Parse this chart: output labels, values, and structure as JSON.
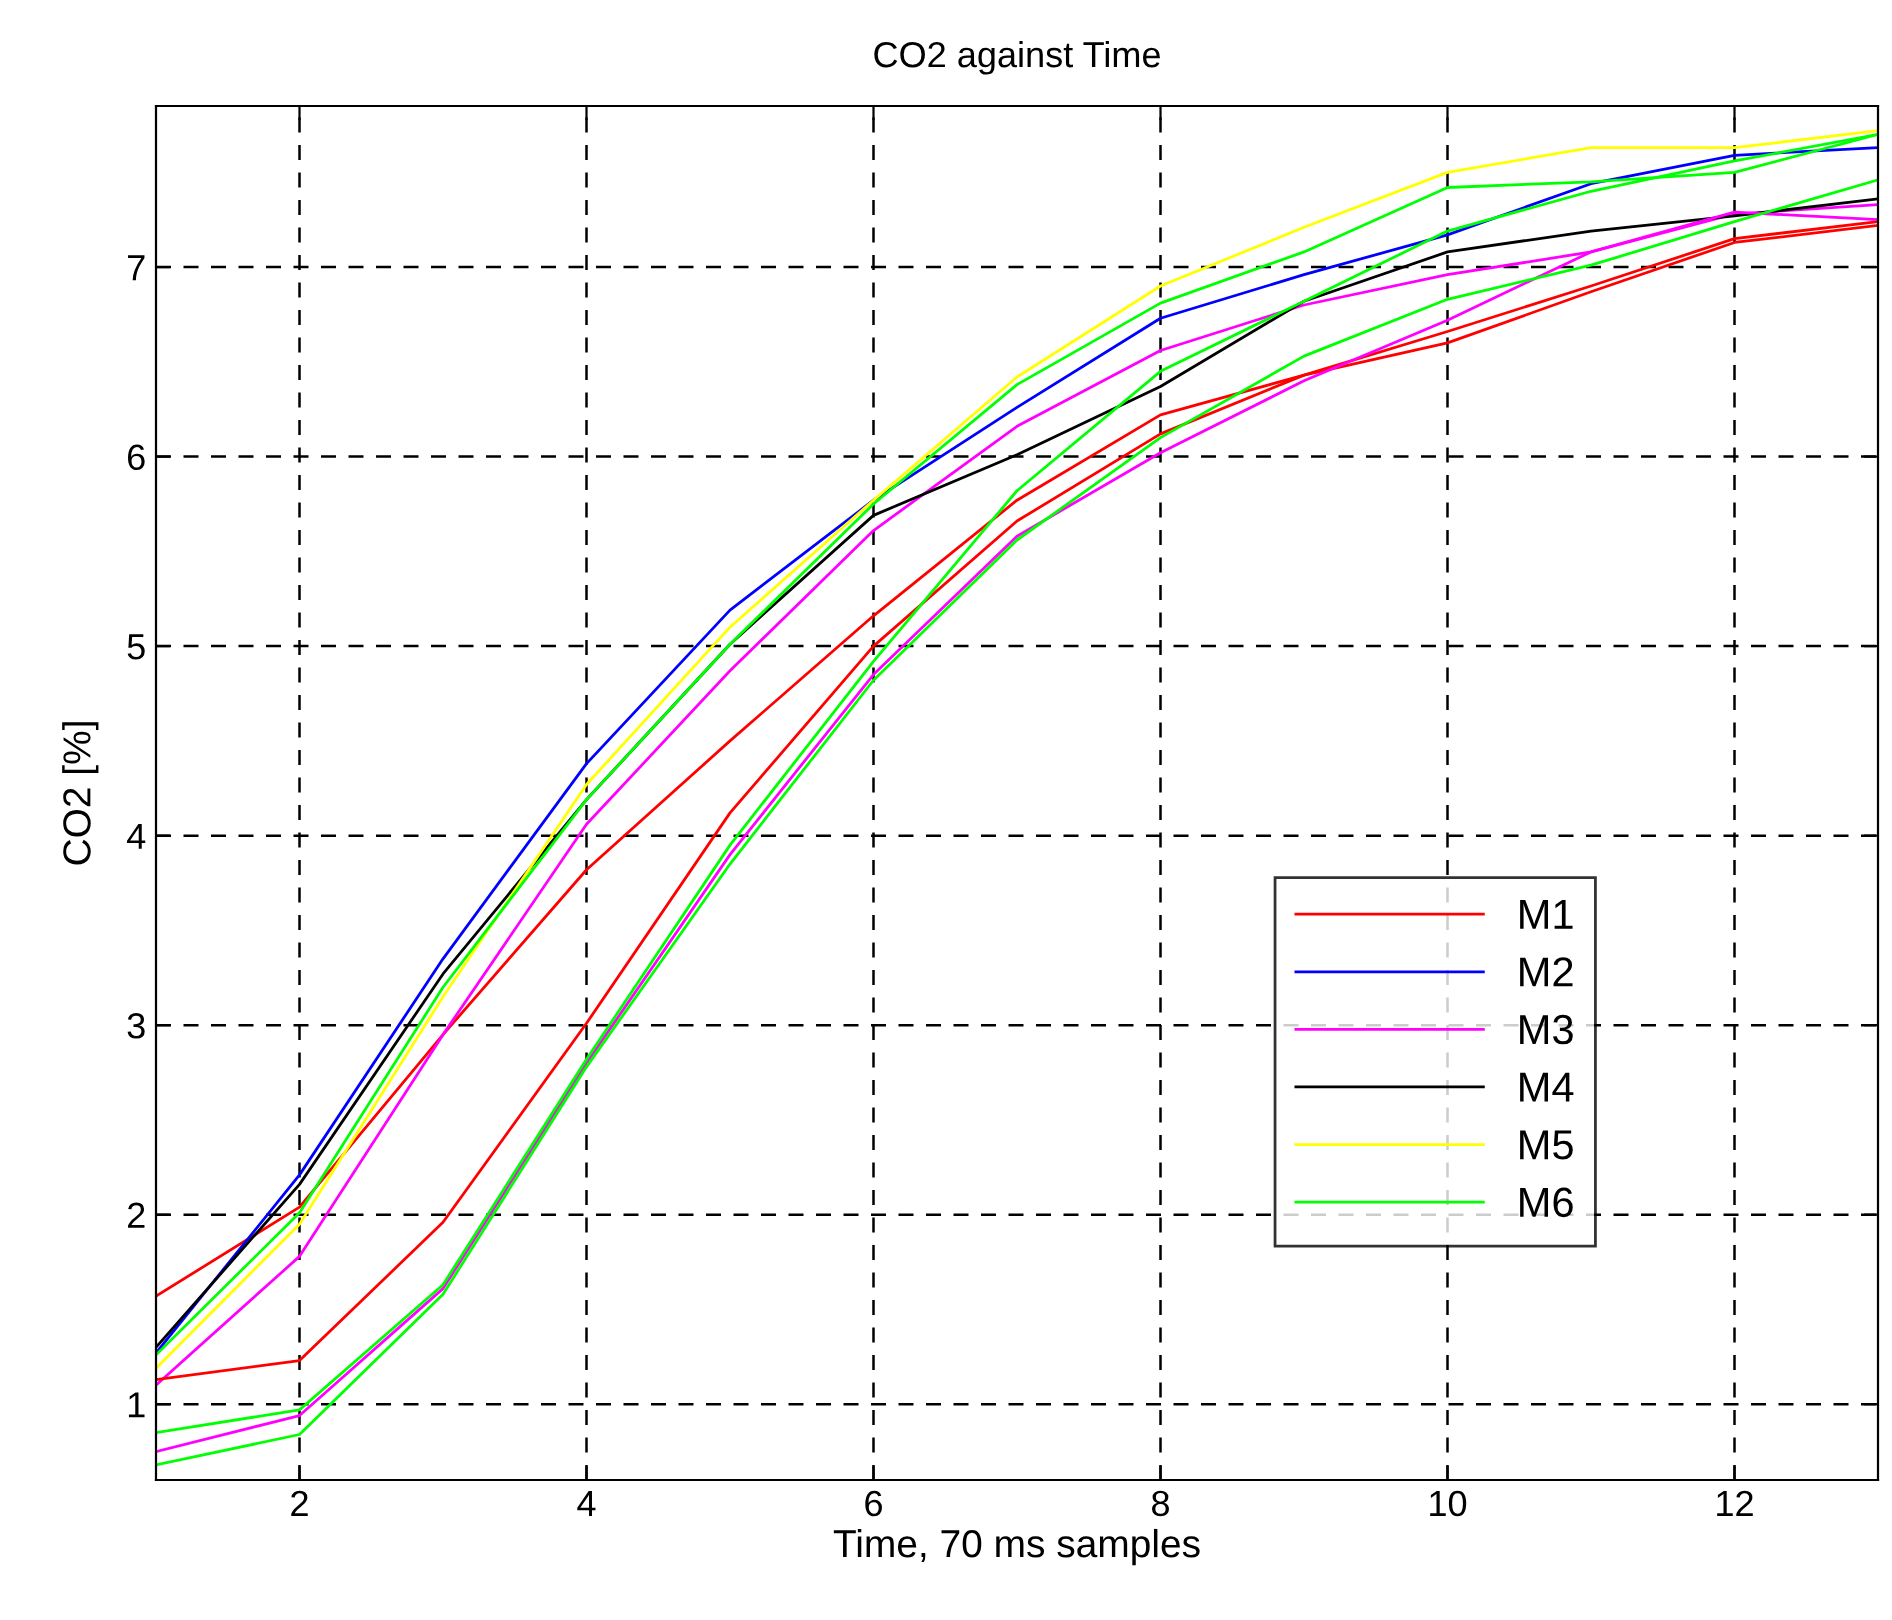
{
  "chart_data": {
    "type": "line",
    "title": "CO2 against Time",
    "xlabel": "Time, 70 ms samples",
    "ylabel": "CO2 [%]",
    "x": [
      1,
      2,
      3,
      4,
      5,
      6,
      7,
      8,
      9,
      10,
      11,
      12,
      13
    ],
    "series": [
      {
        "name": "M1",
        "color": "#ff0000",
        "values": [
          1.57,
          2.04,
          2.95,
          3.82,
          4.5,
          5.16,
          5.77,
          6.22,
          6.43,
          6.66,
          6.9,
          7.15,
          7.24
        ]
      },
      {
        "name": "M2",
        "color": "#0000ff",
        "values": [
          1.27,
          2.21,
          3.35,
          4.38,
          5.19,
          5.77,
          6.26,
          6.73,
          6.96,
          7.17,
          7.44,
          7.59,
          7.63
        ]
      },
      {
        "name": "M3",
        "color": "#ff00ff",
        "values": [
          1.1,
          1.78,
          2.95,
          4.06,
          4.87,
          5.61,
          6.16,
          6.56,
          6.8,
          6.96,
          7.08,
          7.28,
          7.33
        ]
      },
      {
        "name": "M4",
        "color": "#000000",
        "values": [
          1.3,
          2.16,
          3.27,
          4.19,
          5.01,
          5.69,
          6.01,
          6.37,
          6.82,
          7.08,
          7.19,
          7.27,
          7.36
        ]
      },
      {
        "name": "M5",
        "color": "#ffff00",
        "values": [
          1.19,
          1.95,
          3.15,
          4.27,
          5.1,
          5.77,
          6.42,
          6.9,
          7.21,
          7.5,
          7.63,
          7.63,
          7.72
        ]
      },
      {
        "name": "M6",
        "color": "#00ff00",
        "values": [
          1.26,
          2.01,
          3.2,
          4.19,
          5.01,
          5.75,
          6.38,
          6.81,
          7.08,
          7.42,
          7.45,
          7.5,
          7.7
        ]
      },
      {
        "color": "#ff0000",
        "values": [
          1.13,
          1.23,
          1.96,
          3.01,
          4.12,
          5.0,
          5.66,
          6.12,
          6.43,
          6.6,
          6.87,
          7.13,
          7.22
        ]
      },
      {
        "color": "#ff00ff",
        "values": [
          0.75,
          0.94,
          1.61,
          2.8,
          3.9,
          4.85,
          5.58,
          6.02,
          6.4,
          6.72,
          7.08,
          7.29,
          7.25
        ]
      },
      {
        "color": "#00ff00",
        "values": [
          0.85,
          0.97,
          1.63,
          2.82,
          3.95,
          4.92,
          5.82,
          6.45,
          6.82,
          7.19,
          7.4,
          7.56,
          7.7
        ]
      },
      {
        "color": "#00ff00",
        "values": [
          0.68,
          0.84,
          1.58,
          2.78,
          3.85,
          4.82,
          5.56,
          6.1,
          6.53,
          6.83,
          7.01,
          7.24,
          7.46
        ]
      }
    ],
    "xlim": [
      1,
      13
    ],
    "xticks": [
      2,
      4,
      6,
      8,
      10,
      12
    ],
    "ylim": [
      0.6,
      7.85
    ],
    "yticks": [
      1,
      2,
      3,
      4,
      5,
      6,
      7
    ],
    "grid": true,
    "legend": "right",
    "line_style": "solid",
    "marker": "none"
  }
}
